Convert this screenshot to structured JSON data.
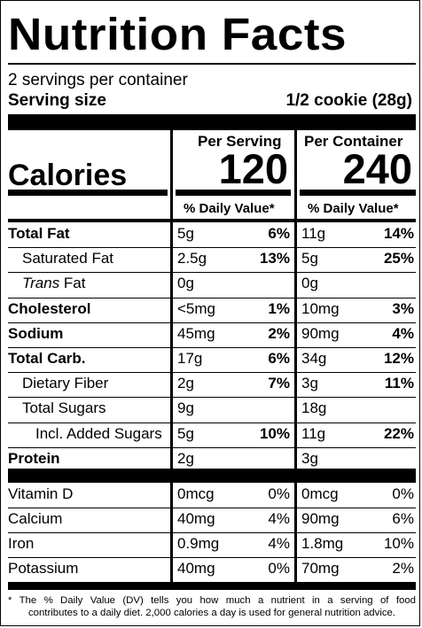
{
  "title": "Nutrition Facts",
  "servings": "2 servings per container",
  "serving_size_label": "Serving size",
  "serving_size_value": "1/2 cookie (28g)",
  "col_headers": {
    "per_serving": "Per Serving",
    "per_container": "Per Container"
  },
  "calories": {
    "label": "Calories",
    "per_serving": "120",
    "per_container": "240"
  },
  "dv_header": "% Daily Value*",
  "nutrients": [
    {
      "name": "Total Fat",
      "bold": true,
      "indent": 0,
      "s_amt": "5g",
      "s_dv": "6%",
      "c_amt": "11g",
      "c_dv": "14%"
    },
    {
      "name": "Saturated Fat",
      "bold": false,
      "indent": 1,
      "s_amt": "2.5g",
      "s_dv": "13%",
      "c_amt": "5g",
      "c_dv": "25%"
    },
    {
      "name_italic": "Trans",
      "name_rest": " Fat",
      "bold": false,
      "indent": 1,
      "s_amt": "0g",
      "s_dv": "",
      "c_amt": "0g",
      "c_dv": ""
    },
    {
      "name": "Cholesterol",
      "bold": true,
      "indent": 0,
      "s_amt": "<5mg",
      "s_dv": "1%",
      "c_amt": "10mg",
      "c_dv": "3%"
    },
    {
      "name": "Sodium",
      "bold": true,
      "indent": 0,
      "s_amt": "45mg",
      "s_dv": "2%",
      "c_amt": "90mg",
      "c_dv": "4%"
    },
    {
      "name": "Total Carb.",
      "bold": true,
      "indent": 0,
      "s_amt": "17g",
      "s_dv": "6%",
      "c_amt": "34g",
      "c_dv": "12%"
    },
    {
      "name": "Dietary Fiber",
      "bold": false,
      "indent": 1,
      "s_amt": "2g",
      "s_dv": "7%",
      "c_amt": "3g",
      "c_dv": "11%"
    },
    {
      "name": "Total Sugars",
      "bold": false,
      "indent": 1,
      "s_amt": "9g",
      "s_dv": "",
      "c_amt": "18g",
      "c_dv": ""
    },
    {
      "name": "Incl. Added Sugars",
      "bold": false,
      "indent": 2,
      "s_amt": "5g",
      "s_dv": "10%",
      "c_amt": "11g",
      "c_dv": "22%"
    },
    {
      "name": "Protein",
      "bold": true,
      "indent": 0,
      "s_amt": "2g",
      "s_dv": "",
      "c_amt": "3g",
      "c_dv": ""
    }
  ],
  "vitamins": [
    {
      "name": "Vitamin D",
      "s_amt": "0mcg",
      "s_dv": "0%",
      "c_amt": "0mcg",
      "c_dv": "0%"
    },
    {
      "name": "Calcium",
      "s_amt": "40mg",
      "s_dv": "4%",
      "c_amt": "90mg",
      "c_dv": "6%"
    },
    {
      "name": "Iron",
      "s_amt": "0.9mg",
      "s_dv": "4%",
      "c_amt": "1.8mg",
      "c_dv": "10%"
    },
    {
      "name": "Potassium",
      "s_amt": "40mg",
      "s_dv": "0%",
      "c_amt": "70mg",
      "c_dv": "2%"
    }
  ],
  "footnote_line1": "* The % Daily Value (DV) tells you how much a nutrient in a serving of food",
  "footnote_line2": "contributes to a daily diet. 2,000 calories a day is used for general nutrition advice."
}
